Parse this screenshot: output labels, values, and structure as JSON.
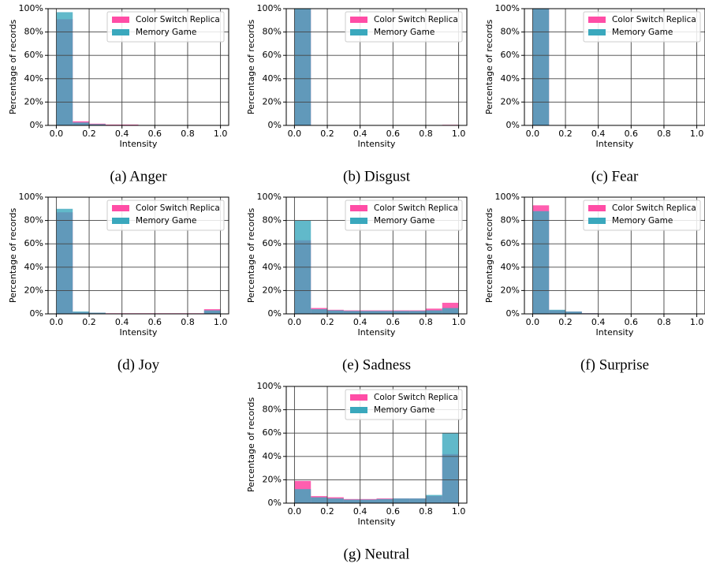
{
  "chart_data": [
    {
      "type": "histogram",
      "caption": "(a) Anger",
      "xlabel": "Intensity",
      "ylabel": "Percentage of records",
      "bins": [
        0,
        0.1,
        0.2,
        0.3,
        0.4,
        0.5,
        0.6,
        0.7,
        0.8,
        0.9,
        1.0
      ],
      "series": [
        {
          "name": "Color Switch Replica",
          "color": "#ff4da6",
          "values": [
            91,
            3.5,
            1.5,
            0.7,
            0.7,
            0,
            0,
            0,
            0,
            0
          ]
        },
        {
          "name": "Memory Game",
          "color": "#3aa8bd",
          "values": [
            97,
            2.5,
            1,
            0.3,
            0.3,
            0,
            0,
            0,
            0,
            0
          ]
        }
      ],
      "xlim": [
        -0.05,
        1.05
      ],
      "ylim": [
        0,
        100
      ],
      "xticks": [
        {
          "value": 0,
          "label": "0.0"
        },
        0.2,
        0.4,
        0.6,
        0.8,
        {
          "value": 1,
          "label": "1.0"
        }
      ],
      "yticks": [
        {
          "value": 0,
          "label": "0%"
        },
        {
          "value": 20,
          "label": "20%"
        },
        {
          "value": 40,
          "label": "40%"
        },
        {
          "value": 60,
          "label": "60%"
        },
        {
          "value": 80,
          "label": "80%"
        },
        {
          "value": 100,
          "label": "100%"
        }
      ],
      "grid": true,
      "legend": "upper right"
    },
    {
      "type": "histogram",
      "caption": "(b) Disgust",
      "xlabel": "Intensity",
      "ylabel": "Percentage of records",
      "bins": [
        0,
        0.1,
        0.2,
        0.3,
        0.4,
        0.5,
        0.6,
        0.7,
        0.8,
        0.9,
        1.0
      ],
      "series": [
        {
          "name": "Color Switch Replica",
          "color": "#ff4da6",
          "values": [
            99.5,
            0,
            0,
            0,
            0,
            0,
            0,
            0,
            0,
            0.5
          ]
        },
        {
          "name": "Memory Game",
          "color": "#3aa8bd",
          "values": [
            100,
            0,
            0,
            0,
            0,
            0,
            0,
            0,
            0,
            0
          ]
        }
      ],
      "xlim": [
        -0.05,
        1.05
      ],
      "ylim": [
        0,
        100
      ],
      "xticks": [
        {
          "value": 0,
          "label": "0.0"
        },
        0.2,
        0.4,
        0.6,
        0.8,
        {
          "value": 1,
          "label": "1.0"
        }
      ],
      "yticks": [
        {
          "value": 0,
          "label": "0%"
        },
        {
          "value": 20,
          "label": "20%"
        },
        {
          "value": 40,
          "label": "40%"
        },
        {
          "value": 60,
          "label": "60%"
        },
        {
          "value": 80,
          "label": "80%"
        },
        {
          "value": 100,
          "label": "100%"
        }
      ],
      "grid": true,
      "legend": "upper right"
    },
    {
      "type": "histogram",
      "caption": "(c) Fear",
      "xlabel": "Intensity",
      "ylabel": "Percentage of records",
      "bins": [
        0,
        0.1,
        0.2,
        0.3,
        0.4,
        0.5,
        0.6,
        0.7,
        0.8,
        0.9,
        1.0
      ],
      "series": [
        {
          "name": "Color Switch Replica",
          "color": "#ff4da6",
          "values": [
            100,
            0,
            0,
            0,
            0,
            0,
            0,
            0,
            0,
            0
          ]
        },
        {
          "name": "Memory Game",
          "color": "#3aa8bd",
          "values": [
            100,
            0,
            0,
            0,
            0,
            0,
            0,
            0,
            0,
            0
          ]
        }
      ],
      "xlim": [
        -0.05,
        1.05
      ],
      "ylim": [
        0,
        100
      ],
      "xticks": [
        {
          "value": 0,
          "label": "0.0"
        },
        0.2,
        0.4,
        0.6,
        0.8,
        {
          "value": 1,
          "label": "1.0"
        }
      ],
      "yticks": [
        {
          "value": 0,
          "label": "0%"
        },
        {
          "value": 20,
          "label": "20%"
        },
        {
          "value": 40,
          "label": "40%"
        },
        {
          "value": 60,
          "label": "60%"
        },
        {
          "value": 80,
          "label": "80%"
        },
        {
          "value": 100,
          "label": "100%"
        }
      ],
      "grid": true,
      "legend": "upper right"
    },
    {
      "type": "histogram",
      "caption": "(d) Joy",
      "xlabel": "Intensity",
      "ylabel": "Percentage of records",
      "bins": [
        0,
        0.1,
        0.2,
        0.3,
        0.4,
        0.5,
        0.6,
        0.7,
        0.8,
        0.9,
        1.0
      ],
      "series": [
        {
          "name": "Color Switch Replica",
          "color": "#ff4da6",
          "values": [
            87,
            1.5,
            1,
            0.5,
            0.5,
            0.5,
            0.5,
            0.5,
            0.5,
            4
          ]
        },
        {
          "name": "Memory Game",
          "color": "#3aa8bd",
          "values": [
            90,
            2,
            1,
            0.3,
            0.3,
            0.3,
            0.3,
            0.3,
            0.3,
            3
          ]
        }
      ],
      "xlim": [
        -0.05,
        1.05
      ],
      "ylim": [
        0,
        100
      ],
      "xticks": [
        {
          "value": 0,
          "label": "0.0"
        },
        0.2,
        0.4,
        0.6,
        0.8,
        {
          "value": 1,
          "label": "1.0"
        }
      ],
      "yticks": [
        {
          "value": 0,
          "label": "0%"
        },
        {
          "value": 20,
          "label": "20%"
        },
        {
          "value": 40,
          "label": "40%"
        },
        {
          "value": 60,
          "label": "60%"
        },
        {
          "value": 80,
          "label": "80%"
        },
        {
          "value": 100,
          "label": "100%"
        }
      ],
      "grid": true,
      "legend": "upper right"
    },
    {
      "type": "histogram",
      "caption": "(e) Sadness",
      "xlabel": "Intensity",
      "ylabel": "Percentage of records",
      "bins": [
        0,
        0.1,
        0.2,
        0.3,
        0.4,
        0.5,
        0.6,
        0.7,
        0.8,
        0.9,
        1.0
      ],
      "series": [
        {
          "name": "Color Switch Replica",
          "color": "#ff4da6",
          "values": [
            63,
            5,
            3.5,
            3,
            3,
            3,
            3,
            3,
            4.5,
            9.5
          ]
        },
        {
          "name": "Memory Game",
          "color": "#3aa8bd",
          "values": [
            80,
            4,
            3,
            2.5,
            2.5,
            2.5,
            2.5,
            2.5,
            3,
            5
          ]
        }
      ],
      "xlim": [
        -0.05,
        1.05
      ],
      "ylim": [
        0,
        100
      ],
      "xticks": [
        {
          "value": 0,
          "label": "0.0"
        },
        0.2,
        0.4,
        0.6,
        0.8,
        {
          "value": 1,
          "label": "1.0"
        }
      ],
      "yticks": [
        {
          "value": 0,
          "label": "0%"
        },
        {
          "value": 20,
          "label": "20%"
        },
        {
          "value": 40,
          "label": "40%"
        },
        {
          "value": 60,
          "label": "60%"
        },
        {
          "value": 80,
          "label": "80%"
        },
        {
          "value": 100,
          "label": "100%"
        }
      ],
      "grid": true,
      "legend": "upper right"
    },
    {
      "type": "histogram",
      "caption": "(f) Surprise",
      "xlabel": "Intensity",
      "ylabel": "Percentage of records",
      "bins": [
        0,
        0.1,
        0.2,
        0.3,
        0.4,
        0.5,
        0.6,
        0.7,
        0.8,
        0.9,
        1.0
      ],
      "series": [
        {
          "name": "Color Switch Replica",
          "color": "#ff4da6",
          "values": [
            93,
            3,
            2,
            0.5,
            0.3,
            0.3,
            0.3,
            0.3,
            0.3,
            0.3
          ]
        },
        {
          "name": "Memory Game",
          "color": "#3aa8bd",
          "values": [
            88,
            3.5,
            2,
            0.5,
            0.3,
            0.3,
            0.3,
            0.3,
            0.3,
            0.3
          ]
        }
      ],
      "xlim": [
        -0.05,
        1.05
      ],
      "ylim": [
        0,
        100
      ],
      "xticks": [
        {
          "value": 0,
          "label": "0.0"
        },
        0.2,
        0.4,
        0.6,
        0.8,
        {
          "value": 1,
          "label": "1.0"
        }
      ],
      "yticks": [
        {
          "value": 0,
          "label": "0%"
        },
        {
          "value": 20,
          "label": "20%"
        },
        {
          "value": 40,
          "label": "40%"
        },
        {
          "value": 60,
          "label": "60%"
        },
        {
          "value": 80,
          "label": "80%"
        },
        {
          "value": 100,
          "label": "100%"
        }
      ],
      "grid": true,
      "legend": "upper right"
    },
    {
      "type": "histogram",
      "caption": "(g) Neutral",
      "xlabel": "Intensity",
      "ylabel": "Percentage of records",
      "bins": [
        0,
        0.1,
        0.2,
        0.3,
        0.4,
        0.5,
        0.6,
        0.7,
        0.8,
        0.9,
        1.0
      ],
      "series": [
        {
          "name": "Color Switch Replica",
          "color": "#ff4da6",
          "values": [
            19,
            6,
            5,
            3.5,
            3.5,
            4,
            4,
            4,
            6,
            42
          ]
        },
        {
          "name": "Memory Game",
          "color": "#3aa8bd",
          "values": [
            12,
            5,
            4,
            3,
            3,
            3.5,
            4,
            4,
            7,
            60
          ]
        }
      ],
      "xlim": [
        -0.05,
        1.05
      ],
      "ylim": [
        0,
        100
      ],
      "xticks": [
        {
          "value": 0,
          "label": "0.0"
        },
        0.2,
        0.4,
        0.6,
        0.8,
        {
          "value": 1,
          "label": "1.0"
        }
      ],
      "yticks": [
        {
          "value": 0,
          "label": "0%"
        },
        {
          "value": 20,
          "label": "20%"
        },
        {
          "value": 40,
          "label": "40%"
        },
        {
          "value": 60,
          "label": "60%"
        },
        {
          "value": 80,
          "label": "80%"
        },
        {
          "value": 100,
          "label": "100%"
        }
      ],
      "grid": true,
      "legend": "upper right"
    }
  ]
}
